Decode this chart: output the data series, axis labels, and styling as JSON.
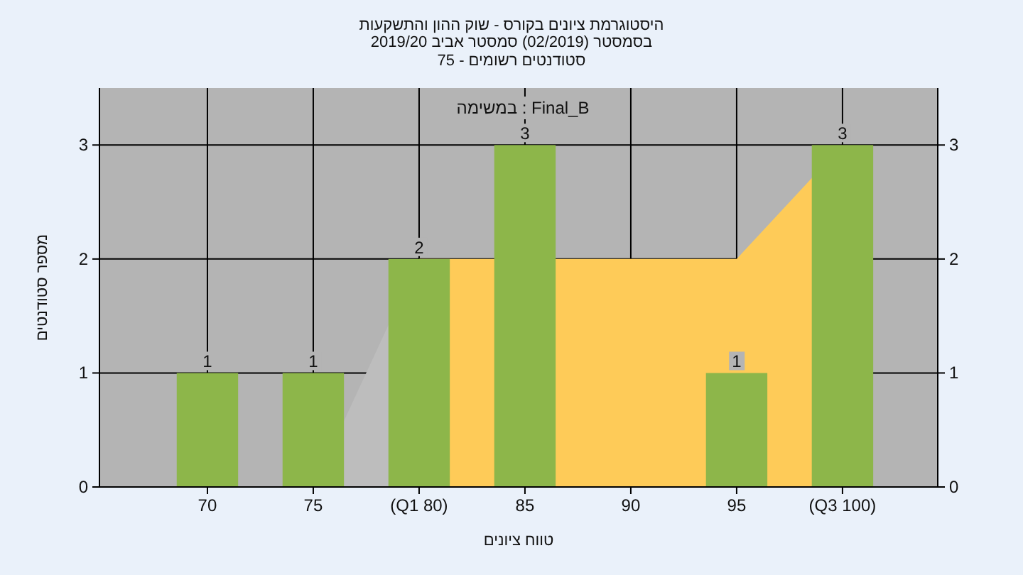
{
  "chart_data": {
    "type": "bar",
    "title": "היסטוגרמת ציונים בקורס - שוק ההון והתשקעות",
    "subtitle": "בסמסטר (02/2019) סמסטר אביב 2019/20",
    "annotations": [
      "סטודנטים רשומים - 75",
      "במשימה : Final_B"
    ],
    "xlabel": "טווח ציונים",
    "ylabel": "מספר סטודנטים",
    "categories": [
      "70",
      "75",
      "(Q1 80)",
      "85",
      "90",
      "95",
      "(Q3 100)"
    ],
    "series": [
      {
        "type": "area",
        "color": "#bdbdbd",
        "values": [
          null,
          0,
          2,
          null,
          null,
          null,
          null
        ]
      },
      {
        "type": "area",
        "color": "#fecb58",
        "values": [
          null,
          null,
          2,
          null,
          2,
          2,
          3
        ]
      },
      {
        "color": "#8db64a",
        "values": [
          1,
          1,
          2,
          3,
          0,
          1,
          3
        ],
        "value_labels": [
          "1",
          "1",
          "2",
          "3",
          null,
          "1",
          "3"
        ]
      }
    ],
    "ylim": [
      0,
      3.5
    ],
    "yticks": [
      0,
      1,
      2,
      3
    ],
    "y2lim": [
      0,
      3.5
    ],
    "y2ticks": [
      0,
      1,
      2,
      3
    ],
    "grid": true
  }
}
